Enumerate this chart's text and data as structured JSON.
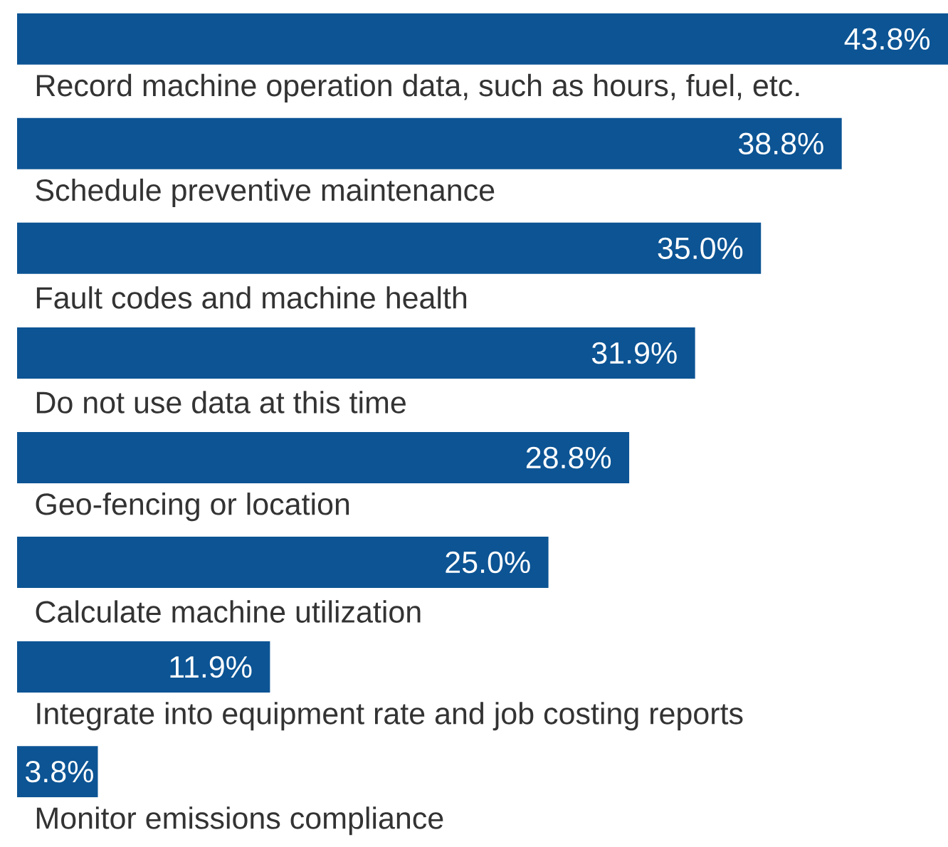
{
  "chart_data": {
    "type": "bar",
    "orientation": "horizontal",
    "categories": [
      "Record machine operation data, such as hours, fuel, etc.",
      "Schedule preventive maintenance",
      "Fault codes and machine health",
      "Do not use data at this time",
      "Geo-fencing or location",
      "Calculate machine utilization",
      "Integrate into equipment rate and job costing reports",
      "Monitor emissions compliance"
    ],
    "values": [
      43.8,
      38.8,
      35.0,
      31.9,
      28.8,
      25.0,
      11.9,
      3.8
    ],
    "value_labels": [
      "43.8%",
      "38.8%",
      "35.0%",
      "31.9%",
      "28.8%",
      "25.0%",
      "11.9%",
      "3.8%"
    ],
    "color": "#0c5494"
  }
}
